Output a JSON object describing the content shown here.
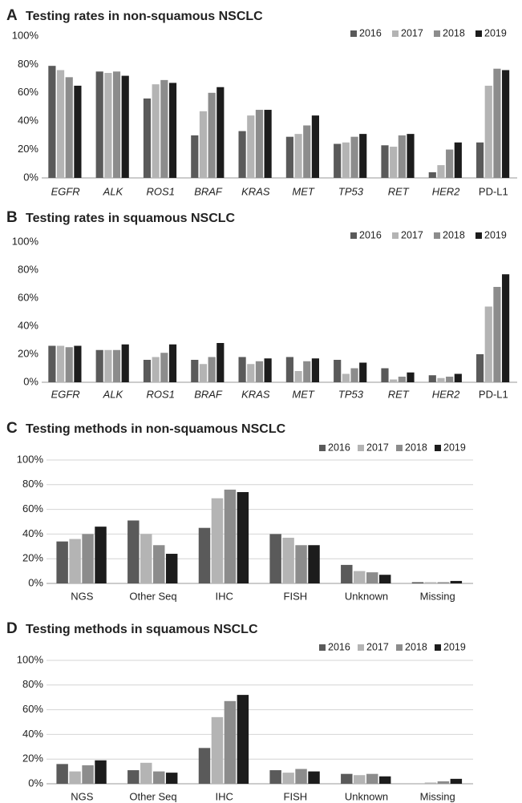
{
  "chart_data": [
    {
      "type": "bar",
      "label": "A",
      "title": "Testing rates in non-squamous NSCLC",
      "categories": [
        "EGFR",
        "ALK",
        "ROS1",
        "BRAF",
        "KRAS",
        "MET",
        "TP53",
        "RET",
        "HER2",
        "PD-L1"
      ],
      "category_style": [
        "italic",
        "italic",
        "italic",
        "italic",
        "italic",
        "italic",
        "italic",
        "italic",
        "italic",
        "normal"
      ],
      "series": [
        {
          "name": "2016",
          "color": "#5a5a5a",
          "values": [
            79,
            75,
            56,
            30,
            33,
            29,
            24,
            23,
            4,
            25
          ]
        },
        {
          "name": "2017",
          "color": "#b4b4b4",
          "values": [
            76,
            74,
            66,
            47,
            44,
            31,
            25,
            22,
            9,
            65
          ]
        },
        {
          "name": "2018",
          "color": "#8c8c8c",
          "values": [
            71,
            75,
            69,
            60,
            48,
            37,
            29,
            30,
            20,
            77
          ]
        },
        {
          "name": "2019",
          "color": "#1c1c1c",
          "values": [
            65,
            72,
            67,
            64,
            48,
            44,
            31,
            31,
            25,
            76
          ]
        }
      ],
      "ylim": [
        0,
        100
      ],
      "yticks": [
        {
          "value": 0,
          "label": "0%"
        },
        {
          "value": 20,
          "label": "20%"
        },
        {
          "value": 40,
          "label": "40%"
        },
        {
          "value": 60,
          "label": "60%"
        },
        {
          "value": 80,
          "label": "80%"
        },
        {
          "value": 100,
          "label": "100%"
        }
      ],
      "grid": false,
      "legend": "top-right"
    },
    {
      "type": "bar",
      "label": "B",
      "title": "Testing rates in squamous NSCLC",
      "categories": [
        "EGFR",
        "ALK",
        "ROS1",
        "BRAF",
        "KRAS",
        "MET",
        "TP53",
        "RET",
        "HER2",
        "PD-L1"
      ],
      "category_style": [
        "italic",
        "italic",
        "italic",
        "italic",
        "italic",
        "italic",
        "italic",
        "italic",
        "italic",
        "normal"
      ],
      "series": [
        {
          "name": "2016",
          "color": "#5a5a5a",
          "values": [
            26,
            23,
            16,
            16,
            18,
            18,
            16,
            10,
            5,
            20
          ]
        },
        {
          "name": "2017",
          "color": "#b4b4b4",
          "values": [
            26,
            23,
            18,
            13,
            13,
            8,
            6,
            2,
            3,
            54
          ]
        },
        {
          "name": "2018",
          "color": "#8c8c8c",
          "values": [
            25,
            23,
            21,
            18,
            15,
            15,
            10,
            4,
            4,
            68
          ]
        },
        {
          "name": "2019",
          "color": "#1c1c1c",
          "values": [
            26,
            27,
            27,
            28,
            17,
            17,
            14,
            7,
            6,
            77
          ]
        }
      ],
      "ylim": [
        0,
        100
      ],
      "yticks": [
        {
          "value": 0,
          "label": "0%"
        },
        {
          "value": 20,
          "label": "20%"
        },
        {
          "value": 40,
          "label": "40%"
        },
        {
          "value": 60,
          "label": "60%"
        },
        {
          "value": 80,
          "label": "80%"
        },
        {
          "value": 100,
          "label": "100%"
        }
      ],
      "grid": false,
      "legend": "top-right"
    },
    {
      "type": "bar",
      "label": "C",
      "title": "Testing methods in non-squamous NSCLC",
      "categories": [
        "NGS",
        "Other Seq",
        "IHC",
        "FISH",
        "Unknown",
        "Missing"
      ],
      "series": [
        {
          "name": "2016",
          "color": "#5a5a5a",
          "values": [
            34,
            51,
            45,
            40,
            15,
            1
          ]
        },
        {
          "name": "2017",
          "color": "#b4b4b4",
          "values": [
            36,
            40,
            69,
            37,
            10,
            1
          ]
        },
        {
          "name": "2018",
          "color": "#8c8c8c",
          "values": [
            40,
            31,
            76,
            31,
            9,
            1
          ]
        },
        {
          "name": "2019",
          "color": "#1c1c1c",
          "values": [
            46,
            24,
            74,
            31,
            7,
            2
          ]
        }
      ],
      "ylim": [
        0,
        100
      ],
      "yticks": [
        {
          "value": 0,
          "label": "0%"
        },
        {
          "value": 20,
          "label": "20%"
        },
        {
          "value": 40,
          "label": "40%"
        },
        {
          "value": 60,
          "label": "60%"
        },
        {
          "value": 80,
          "label": "80%"
        },
        {
          "value": 100,
          "label": "100%"
        }
      ],
      "grid": true,
      "legend": "top-right"
    },
    {
      "type": "bar",
      "label": "D",
      "title": "Testing methods in squamous NSCLC",
      "categories": [
        "NGS",
        "Other Seq",
        "IHC",
        "FISH",
        "Unknown",
        "Missing"
      ],
      "series": [
        {
          "name": "2016",
          "color": "#5a5a5a",
          "values": [
            16,
            11,
            29,
            11,
            8,
            0
          ]
        },
        {
          "name": "2017",
          "color": "#b4b4b4",
          "values": [
            10,
            17,
            54,
            9,
            7,
            1
          ]
        },
        {
          "name": "2018",
          "color": "#8c8c8c",
          "values": [
            15,
            10,
            67,
            12,
            8,
            2
          ]
        },
        {
          "name": "2019",
          "color": "#1c1c1c",
          "values": [
            19,
            9,
            72,
            10,
            6,
            4
          ]
        }
      ],
      "ylim": [
        0,
        100
      ],
      "yticks": [
        {
          "value": 0,
          "label": "0%"
        },
        {
          "value": 20,
          "label": "20%"
        },
        {
          "value": 40,
          "label": "40%"
        },
        {
          "value": 60,
          "label": "60%"
        },
        {
          "value": 80,
          "label": "80%"
        },
        {
          "value": 100,
          "label": "100%"
        }
      ],
      "grid": true,
      "legend": "top-right"
    }
  ]
}
